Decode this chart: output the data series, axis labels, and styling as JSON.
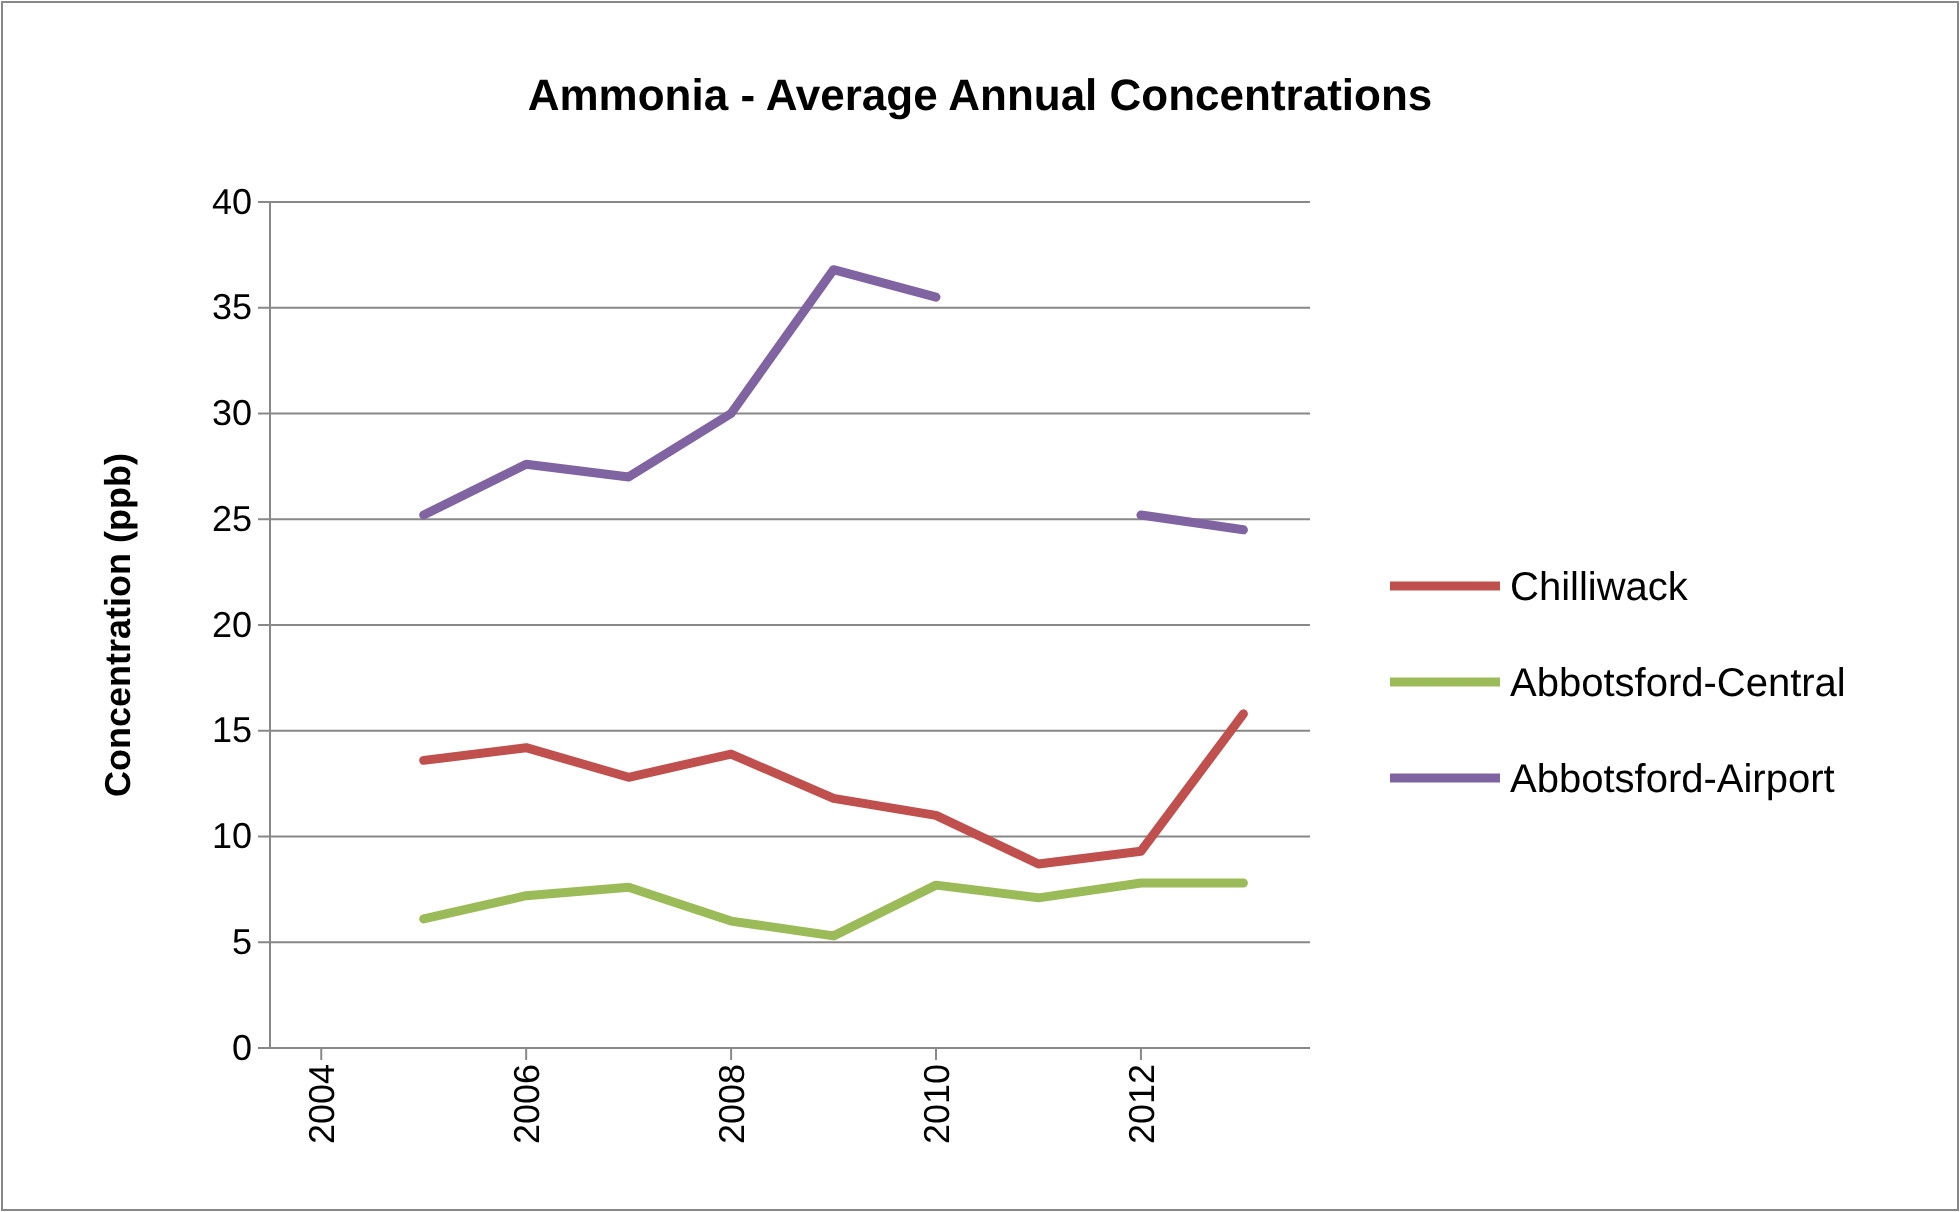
{
  "chart_data": {
    "type": "line",
    "title": "Ammonia - Average Annual Concentrations",
    "ylabel": "Concentration (ppb)",
    "x": [
      2005,
      2006,
      2007,
      2008,
      2009,
      2010,
      2011,
      2012,
      2013
    ],
    "series": [
      {
        "name": "Chilliwack",
        "color": "#c0504d",
        "values": [
          13.6,
          14.2,
          12.8,
          13.9,
          11.8,
          11.0,
          8.7,
          9.3,
          15.8
        ]
      },
      {
        "name": "Abbotsford-Central",
        "color": "#9bbb59",
        "values": [
          6.1,
          7.2,
          7.6,
          6.0,
          5.3,
          7.7,
          7.1,
          7.8,
          7.8
        ]
      },
      {
        "name": "Abbotsford-Airport",
        "color": "#8064a2",
        "values": [
          25.2,
          27.6,
          27.0,
          30.0,
          36.8,
          35.5,
          null,
          25.2,
          24.5
        ]
      }
    ],
    "xlim": [
      2003.5,
      2013.65
    ],
    "xticks": [
      2004,
      2006,
      2008,
      2010,
      2012
    ],
    "ylim": [
      0,
      40
    ],
    "yticks": [
      0,
      5,
      10,
      15,
      20,
      25,
      30,
      35,
      40
    ],
    "grid": "y",
    "legend": "right",
    "marker": "none",
    "line_style": "solid"
  }
}
